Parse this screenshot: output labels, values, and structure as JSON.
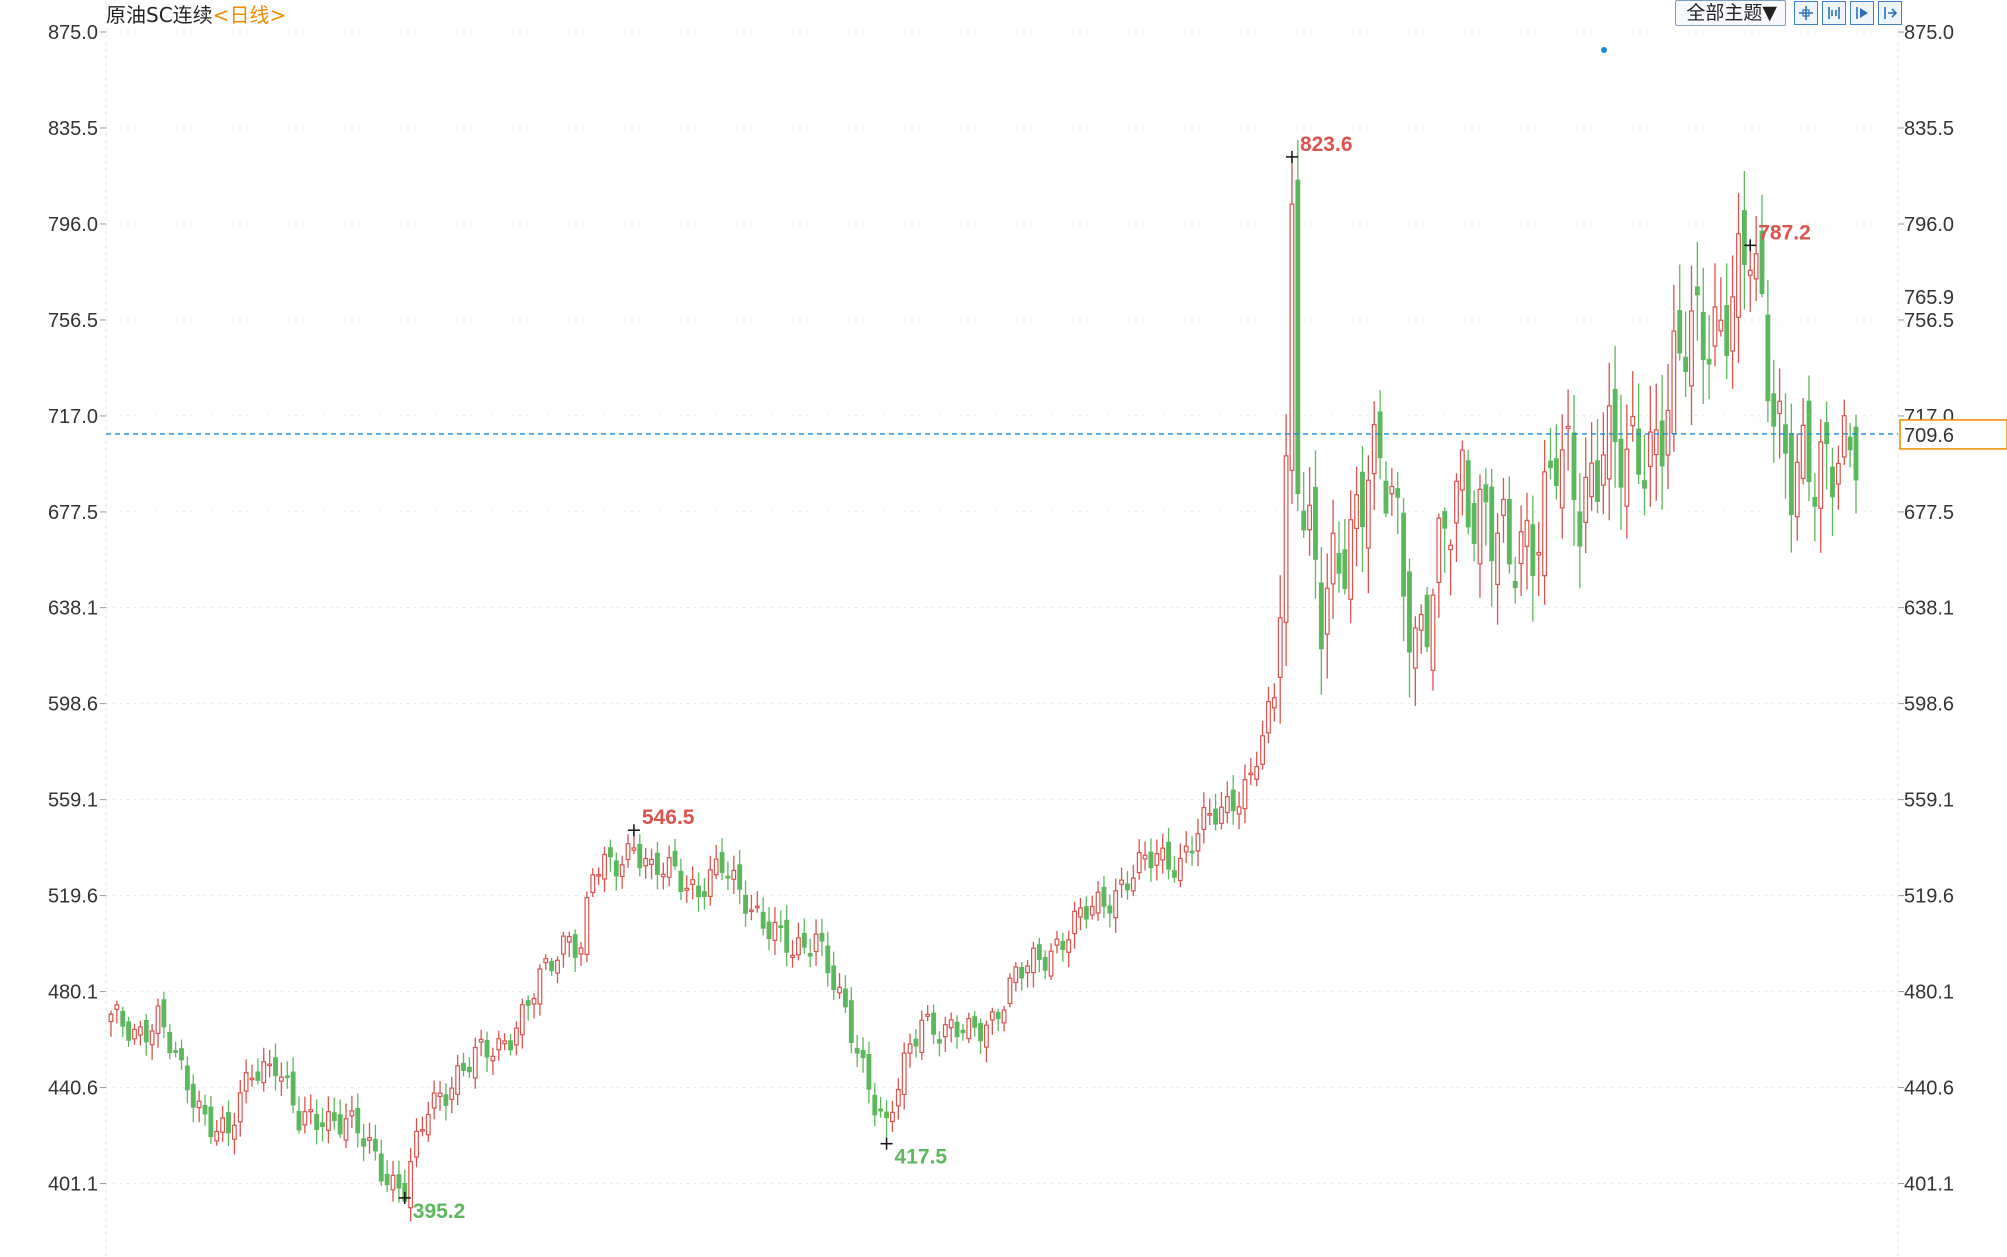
{
  "header": {
    "instrument": "原油SC连续",
    "period_open": "<",
    "period": "日线",
    "period_close": ">",
    "theme_button": "全部主题▼"
  },
  "toolbar": {
    "icons": [
      "crosshair-icon",
      "zoom-range-icon",
      "play-icon",
      "exit-icon"
    ]
  },
  "colors": {
    "up": "#d9534f",
    "down": "#5cb85c",
    "price_line": "#1a8ad6",
    "price_tag": "#f08a00",
    "grid": "#e6e6e6"
  },
  "chart_data": {
    "type": "candlestick",
    "title": "原油SC连续",
    "period": "日线",
    "ylim": [
      375.4,
      875.0
    ],
    "y_ticks": [
      "875.0",
      "835.5",
      "796.0",
      "756.5",
      "717.0",
      "677.5",
      "638.1",
      "598.6",
      "559.1",
      "519.6",
      "480.1",
      "440.6",
      "401.1"
    ],
    "current_price": 709.6,
    "current_price_label": "709.6",
    "marked_level": 765.9,
    "marked_level_label": "765.9",
    "highlights": [
      {
        "label": "823.6",
        "value": 823.6,
        "kind": "high",
        "index": 201
      },
      {
        "label": "787.2",
        "value": 787.2,
        "kind": "high",
        "index": 279
      },
      {
        "label": "546.5",
        "value": 546.5,
        "kind": "high",
        "index": 89
      },
      {
        "label": "395.2",
        "value": 395.2,
        "kind": "low",
        "index": 50
      },
      {
        "label": "417.5",
        "value": 417.5,
        "kind": "low",
        "index": 132
      }
    ],
    "anchors": [
      [
        0,
        468
      ],
      [
        4,
        463
      ],
      [
        8,
        470
      ],
      [
        12,
        445
      ],
      [
        16,
        430
      ],
      [
        20,
        420
      ],
      [
        24,
        448
      ],
      [
        28,
        452
      ],
      [
        32,
        425
      ],
      [
        36,
        430
      ],
      [
        40,
        426
      ],
      [
        44,
        416
      ],
      [
        48,
        402
      ],
      [
        50,
        398
      ],
      [
        54,
        432
      ],
      [
        58,
        444
      ],
      [
        62,
        452
      ],
      [
        66,
        458
      ],
      [
        70,
        470
      ],
      [
        74,
        488
      ],
      [
        78,
        505
      ],
      [
        80,
        498
      ],
      [
        82,
        528
      ],
      [
        86,
        533
      ],
      [
        89,
        542
      ],
      [
        92,
        528
      ],
      [
        96,
        530
      ],
      [
        100,
        522
      ],
      [
        104,
        530
      ],
      [
        108,
        520
      ],
      [
        112,
        505
      ],
      [
        116,
        496
      ],
      [
        120,
        505
      ],
      [
        124,
        475
      ],
      [
        128,
        450
      ],
      [
        132,
        424
      ],
      [
        134,
        440
      ],
      [
        138,
        470
      ],
      [
        142,
        464
      ],
      [
        146,
        462
      ],
      [
        150,
        470
      ],
      [
        154,
        485
      ],
      [
        158,
        494
      ],
      [
        162,
        502
      ],
      [
        166,
        512
      ],
      [
        170,
        520
      ],
      [
        174,
        528
      ],
      [
        178,
        536
      ],
      [
        182,
        534
      ],
      [
        186,
        548
      ],
      [
        190,
        558
      ],
      [
        194,
        567
      ],
      [
        198,
        600
      ],
      [
        200,
        700
      ],
      [
        201,
        800
      ],
      [
        202,
        705
      ],
      [
        206,
        628
      ],
      [
        210,
        665
      ],
      [
        214,
        700
      ],
      [
        218,
        678
      ],
      [
        222,
        628
      ],
      [
        226,
        652
      ],
      [
        230,
        690
      ],
      [
        234,
        680
      ],
      [
        238,
        650
      ],
      [
        242,
        672
      ],
      [
        246,
        700
      ],
      [
        250,
        675
      ],
      [
        254,
        715
      ],
      [
        258,
        690
      ],
      [
        262,
        705
      ],
      [
        266,
        735
      ],
      [
        270,
        748
      ],
      [
        274,
        760
      ],
      [
        278,
        775
      ],
      [
        279,
        782
      ],
      [
        282,
        740
      ],
      [
        286,
        695
      ],
      [
        290,
        685
      ],
      [
        294,
        712
      ],
      [
        297,
        705
      ]
    ],
    "candle_count": 298
  }
}
